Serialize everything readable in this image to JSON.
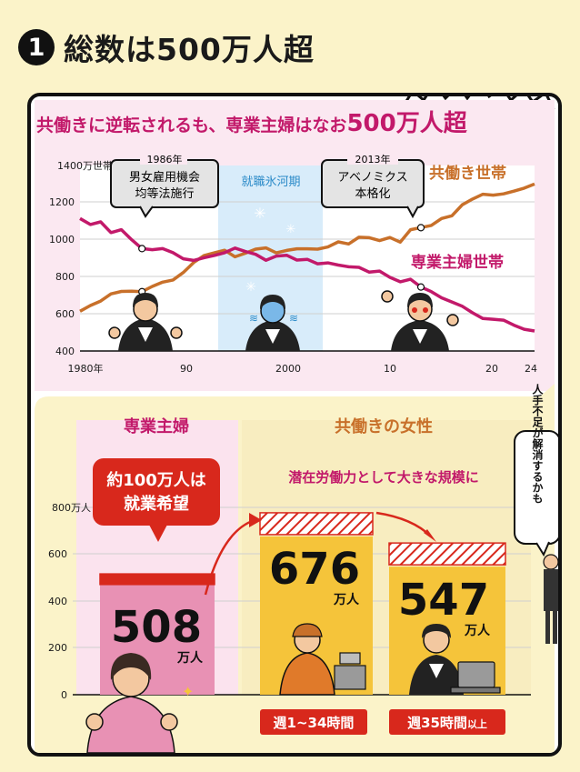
{
  "header": {
    "number": "1",
    "title": "総数は500万人超"
  },
  "line_chart": {
    "title_prefix": "共働きに逆転されるも、専業主婦はなお",
    "title_emphasis": "500万人超",
    "y_unit": "1400万世帯",
    "y_ticks": [
      "1200",
      "1000",
      "800",
      "600",
      "400"
    ],
    "x_ticks": [
      "1980年",
      "90",
      "2000",
      "10",
      "20",
      "24"
    ],
    "callouts": [
      {
        "year": "1986年",
        "line1": "男女雇用機会",
        "line2": "均等法施行"
      },
      {
        "year": "2013年",
        "line1": "アベノミクス",
        "line2": "本格化"
      }
    ],
    "band_label": "就職氷河期",
    "series_labels": {
      "dual": "共働き世帯",
      "housewife": "専業主婦世帯"
    }
  },
  "bar_section": {
    "left_header": "専業主婦",
    "right_header": "共働きの女性",
    "bubble_line1": "約100万人は",
    "bubble_line2": "就業希望",
    "right_note": "潜在労働力として大きな規模に",
    "speech_vertical": "人手不足が解消するかも",
    "y_unit": "800万人",
    "y_ticks": [
      "600",
      "400",
      "200",
      "0"
    ],
    "bars": [
      {
        "value_label": "508",
        "unit": "万人"
      },
      {
        "value_label": "676",
        "unit": "万人",
        "caption": "週1~34時間"
      },
      {
        "value_label": "547",
        "unit": "万人",
        "caption_main": "週35時間",
        "caption_small": "以上"
      }
    ]
  },
  "colors": {
    "magenta": "#c2196a",
    "orange": "#c8702a",
    "yellow": "#f5c43a",
    "pink": "#e891b4",
    "red": "#d8281c",
    "band": "#d8ecfa",
    "chart_bg": "#fbe8f1",
    "cream": "#fbf3c9"
  },
  "chart_data": [
    {
      "type": "line",
      "y_unit": "万世帯",
      "ylim": [
        400,
        1400
      ],
      "x_ticks": [
        1980,
        1990,
        2000,
        2010,
        2020,
        2024
      ],
      "series": [
        {
          "name": "共働き世帯",
          "x": [
            1980,
            1981,
            1982,
            1983,
            1984,
            1985,
            1986,
            1987,
            1988,
            1989,
            1990,
            1991,
            1992,
            1993,
            1994,
            1995,
            1996,
            1997,
            1998,
            1999,
            2000,
            2001,
            2002,
            2003,
            2004,
            2005,
            2006,
            2007,
            2008,
            2009,
            2010,
            2011,
            2012,
            2013,
            2014,
            2015,
            2016,
            2017,
            2018,
            2019,
            2020,
            2021,
            2022,
            2023,
            2024
          ],
          "values": [
            614,
            645,
            669,
            708,
            721,
            722,
            720,
            748,
            771,
            783,
            823,
            877,
            914,
            929,
            943,
            908,
            927,
            949,
            956,
            929,
            942,
            951,
            951,
            949,
            961,
            988,
            977,
            1013,
            1011,
            995,
            1012,
            987,
            1054,
            1065,
            1077,
            1114,
            1129,
            1188,
            1219,
            1245,
            1240,
            1247,
            1262,
            1278,
            1300
          ]
        },
        {
          "name": "専業主婦世帯",
          "x": [
            1980,
            1981,
            1982,
            1983,
            1984,
            1985,
            1986,
            1987,
            1988,
            1989,
            1990,
            1991,
            1992,
            1993,
            1994,
            1995,
            1996,
            1997,
            1998,
            1999,
            2000,
            2001,
            2002,
            2003,
            2004,
            2005,
            2006,
            2007,
            2008,
            2009,
            2010,
            2011,
            2012,
            2013,
            2014,
            2015,
            2016,
            2017,
            2018,
            2019,
            2020,
            2021,
            2022,
            2023,
            2024
          ],
          "values": [
            1114,
            1082,
            1096,
            1038,
            1054,
            1000,
            952,
            946,
            952,
            930,
            897,
            888,
            903,
            915,
            930,
            955,
            937,
            921,
            889,
            912,
            916,
            890,
            894,
            870,
            875,
            863,
            854,
            851,
            825,
            831,
            797,
            773,
            787,
            745,
            720,
            687,
            664,
            641,
            606,
            575,
            571,
            566,
            539,
            517,
            508
          ]
        }
      ]
    },
    {
      "type": "bar",
      "y_unit": "万人",
      "ylim": [
        0,
        800
      ],
      "categories": [
        "専業主婦",
        "週1~34時間",
        "週35時間以上"
      ],
      "values": [
        508,
        676,
        547
      ],
      "annotation": "約100万人は就業希望"
    }
  ]
}
